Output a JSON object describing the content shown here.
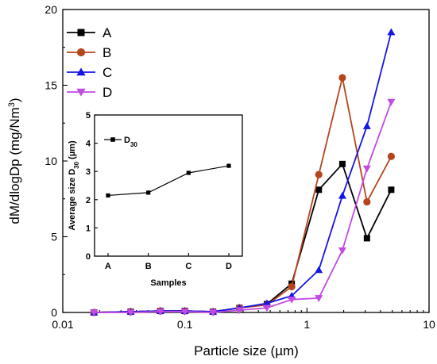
{
  "chart_data": [
    {
      "type": "line",
      "xlabel": "Particle size (µm)",
      "ylabel": "dM/dlogDp (mg/Nm",
      "ylabel_sup": "3",
      "ylabel_end": ")",
      "xscale": "log",
      "xlim": [
        0.01,
        10
      ],
      "ylim": [
        0,
        20
      ],
      "xticks": [
        0.01,
        0.1,
        1,
        10
      ],
      "xtick_labels": [
        "0.01",
        "0.1",
        "1",
        "10"
      ],
      "yticks": [
        0,
        5,
        10,
        15,
        20
      ],
      "ytick_labels": [
        "0",
        "5",
        "10",
        "15",
        "20"
      ],
      "legend_position": "top-left",
      "grid": false,
      "x": [
        0.018,
        0.036,
        0.063,
        0.1,
        0.17,
        0.28,
        0.47,
        0.75,
        1.25,
        1.95,
        3.1,
        4.9
      ],
      "series": [
        {
          "name": "A",
          "color": "#000000",
          "marker": "square",
          "values": [
            0.0,
            0.05,
            0.1,
            0.1,
            0.05,
            0.3,
            0.55,
            1.9,
            8.1,
            9.8,
            4.9,
            8.1
          ]
        },
        {
          "name": "B",
          "color": "#b5451b",
          "marker": "circle",
          "values": [
            0.0,
            0.05,
            0.1,
            0.1,
            0.05,
            0.3,
            0.5,
            1.7,
            9.1,
            15.5,
            7.3,
            10.3
          ]
        },
        {
          "name": "C",
          "color": "#1515e6",
          "marker": "triangle-up",
          "values": [
            0.0,
            0.05,
            0.1,
            0.1,
            0.05,
            0.3,
            0.6,
            1.1,
            2.8,
            7.7,
            12.3,
            18.5
          ]
        },
        {
          "name": "D",
          "color": "#c34ae3",
          "marker": "triangle-down",
          "values": [
            0.0,
            0.0,
            0.05,
            0.05,
            0.0,
            0.15,
            0.3,
            0.85,
            0.95,
            4.1,
            9.5,
            13.9
          ]
        }
      ]
    },
    {
      "type": "line",
      "inset": true,
      "xlabel": "Samples",
      "ylabel": "Average size D",
      "ylabel_sub": "30",
      "ylabel_end": " (µm)",
      "categories": [
        "A",
        "B",
        "C",
        "D"
      ],
      "ylim": [
        0,
        5
      ],
      "yticks": [
        0,
        1,
        2,
        3,
        4,
        5
      ],
      "ytick_labels": [
        "0",
        "1",
        "2",
        "3",
        "4",
        "5"
      ],
      "legend_position": "top-left",
      "series": [
        {
          "name": "D",
          "name_sub": "30",
          "color": "#000000",
          "marker": "square",
          "values": [
            2.15,
            2.25,
            2.95,
            3.2
          ]
        }
      ]
    }
  ]
}
